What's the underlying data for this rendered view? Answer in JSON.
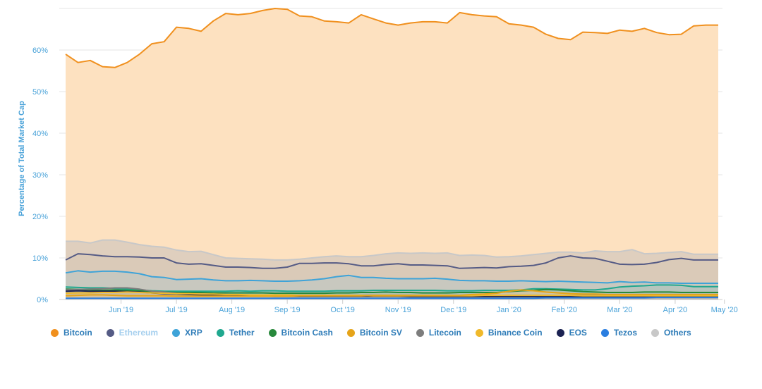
{
  "chart_data": {
    "type": "area",
    "ylabel": "Percentage of Total Market Cap",
    "ylim": [
      0,
      70
    ],
    "yticks": [
      "0%",
      "10%",
      "20%",
      "30%",
      "40%",
      "50%",
      "60%"
    ],
    "yticks_values": [
      0,
      10,
      20,
      30,
      40,
      50,
      60
    ],
    "xticks": [
      "Jun '19",
      "Jul '19",
      "Aug '19",
      "Sep '19",
      "Oct '19",
      "Nov '19",
      "Dec '19",
      "Jan '20",
      "Feb '20",
      "Mar '20",
      "Apr '20",
      "May '20"
    ],
    "xticks_index": [
      4.5,
      9.0,
      13.5,
      18.0,
      22.5,
      27.0,
      31.5,
      36.0,
      40.5,
      45.0,
      49.5,
      53.5
    ],
    "x": [
      "2019-05-05",
      "2019-05-12",
      "2019-05-19",
      "2019-05-26",
      "2019-06-02",
      "2019-06-09",
      "2019-06-16",
      "2019-06-23",
      "2019-06-30",
      "2019-07-07",
      "2019-07-14",
      "2019-07-21",
      "2019-07-28",
      "2019-08-04",
      "2019-08-11",
      "2019-08-18",
      "2019-08-25",
      "2019-09-01",
      "2019-09-08",
      "2019-09-15",
      "2019-09-22",
      "2019-09-29",
      "2019-10-06",
      "2019-10-13",
      "2019-10-20",
      "2019-10-27",
      "2019-11-03",
      "2019-11-10",
      "2019-11-17",
      "2019-11-24",
      "2019-12-01",
      "2019-12-08",
      "2019-12-15",
      "2019-12-22",
      "2019-12-29",
      "2020-01-05",
      "2020-01-12",
      "2020-01-19",
      "2020-01-26",
      "2020-02-02",
      "2020-02-09",
      "2020-02-16",
      "2020-02-23",
      "2020-03-01",
      "2020-03-08",
      "2020-03-15",
      "2020-03-22",
      "2020-03-29",
      "2020-04-05",
      "2020-04-12",
      "2020-04-19",
      "2020-04-26",
      "2020-05-03",
      "2020-05-10"
    ],
    "series": [
      {
        "name": "Bitcoin",
        "color": "#f0901e",
        "fill": "#fde1c0",
        "values": [
          59,
          57,
          57.5,
          56,
          55.8,
          57,
          59,
          61.5,
          62,
          65.5,
          65.2,
          64.5,
          67,
          68.8,
          68.5,
          68.8,
          69.5,
          70,
          69.8,
          68.2,
          68,
          67,
          66.8,
          66.5,
          68.5,
          67.5,
          66.5,
          66,
          66.5,
          66.8,
          66.8,
          66.5,
          69,
          68.5,
          68.2,
          68,
          66.3,
          66,
          65.5,
          63.8,
          62.8,
          62.5,
          64.3,
          64.2,
          64,
          64.8,
          64.5,
          65.2,
          64.2,
          63.7,
          63.8,
          65.8,
          66,
          66
        ]
      },
      {
        "name": "Ethereum",
        "color": "#555b85",
        "fill": "#d6c6b2",
        "values": [
          9.5,
          11,
          10.8,
          10.5,
          10.3,
          10.3,
          10.2,
          10,
          10,
          8.8,
          8.5,
          8.6,
          8.2,
          7.8,
          7.8,
          7.7,
          7.5,
          7.5,
          7.8,
          8.7,
          8.7,
          8.8,
          8.8,
          8.6,
          8.1,
          8.1,
          8.4,
          8.6,
          8.3,
          8.3,
          8.2,
          8.1,
          7.5,
          7.6,
          7.7,
          7.6,
          7.9,
          8,
          8.2,
          8.8,
          10,
          10.5,
          10,
          9.9,
          9.2,
          8.5,
          8.4,
          8.5,
          8.9,
          9.6,
          9.9,
          9.5,
          9.5,
          9.5
        ]
      },
      {
        "name": "XRP",
        "color": "#3ea3d8",
        "fill": "#b9c6c4",
        "values": [
          6.4,
          6.9,
          6.6,
          6.8,
          6.8,
          6.6,
          6.2,
          5.5,
          5.3,
          4.8,
          4.9,
          5,
          4.7,
          4.5,
          4.5,
          4.6,
          4.5,
          4.4,
          4.4,
          4.5,
          4.7,
          5,
          5.5,
          5.8,
          5.3,
          5.3,
          5.1,
          5,
          5,
          5,
          5.1,
          4.9,
          4.6,
          4.5,
          4.5,
          4.4,
          4.4,
          4.5,
          4.4,
          4.3,
          4.4,
          4.3,
          4.2,
          4.1,
          4,
          4.3,
          4.1,
          4.2,
          4,
          4,
          3.9,
          3.9,
          3.9,
          3.9
        ]
      },
      {
        "name": "Tether",
        "color": "#20a88f",
        "fill": "#a7c2bb",
        "values": [
          3,
          2.9,
          2.8,
          2.8,
          2.7,
          2.5,
          2.3,
          2.1,
          2,
          2,
          2,
          2,
          2,
          2,
          2.1,
          2,
          2.1,
          2.1,
          2,
          2,
          2,
          2,
          2.1,
          2.1,
          2.1,
          2.2,
          2.2,
          2.2,
          2.2,
          2.2,
          2.2,
          2.1,
          2.1,
          2.1,
          2.2,
          2.2,
          2.2,
          2.3,
          2.6,
          2.6,
          2.5,
          2.4,
          2.3,
          2.3,
          2.6,
          3,
          3.2,
          3.3,
          3.5,
          3.5,
          3.4,
          3.1,
          3.1,
          3.1
        ]
      },
      {
        "name": "Bitcoin Cash",
        "color": "#28893c",
        "fill": "#a5bca8",
        "values": [
          2.5,
          2.4,
          2.3,
          2.2,
          2.3,
          2.2,
          2.1,
          1.9,
          1.8,
          1.7,
          1.7,
          1.7,
          1.6,
          1.6,
          1.6,
          1.6,
          1.6,
          1.5,
          1.5,
          1.5,
          1.5,
          1.5,
          1.6,
          1.6,
          1.7,
          1.7,
          1.8,
          1.7,
          1.7,
          1.6,
          1.6,
          1.6,
          1.7,
          1.7,
          1.7,
          1.7,
          1.9,
          2.1,
          2.2,
          2.4,
          2.3,
          2.1,
          1.9,
          1.8,
          1.7,
          1.7,
          1.7,
          1.8,
          1.8,
          1.8,
          1.7,
          1.7,
          1.7,
          1.7
        ]
      },
      {
        "name": "Bitcoin SV",
        "color": "#e6a419",
        "fill": "#e7c79b",
        "values": [
          0.9,
          1,
          1.1,
          1.1,
          1,
          0.9,
          0.9,
          0.9,
          0.9,
          0.8,
          0.8,
          0.8,
          0.8,
          0.8,
          0.8,
          0.8,
          0.8,
          0.8,
          0.8,
          0.9,
          0.9,
          0.9,
          0.9,
          0.9,
          0.9,
          1,
          1,
          1,
          1,
          1,
          1,
          1,
          1,
          1.2,
          1.3,
          1.5,
          2,
          2.3,
          2.1,
          1.8,
          1.6,
          1.4,
          1.3,
          1.3,
          1.2,
          1.2,
          1.2,
          1.2,
          1.2,
          1.2,
          1.2,
          1.2,
          1.2,
          1.2
        ]
      },
      {
        "name": "Litecoin",
        "color": "#7d7d7d",
        "fill": "#b3aca2",
        "values": [
          2.3,
          2.4,
          2.5,
          2.6,
          2.8,
          2.8,
          2.5,
          2,
          1.8,
          1.5,
          1.3,
          1.3,
          1.2,
          1.2,
          1.1,
          1.1,
          1.1,
          1,
          1,
          1,
          1,
          1,
          1,
          1,
          1,
          1,
          1,
          1,
          1,
          0.9,
          0.9,
          0.9,
          0.9,
          0.9,
          0.9,
          0.9,
          1,
          1,
          1,
          1,
          1,
          1,
          1,
          1,
          1,
          0.9,
          0.9,
          0.9,
          0.9,
          0.9,
          0.9,
          0.9,
          0.9,
          0.9
        ]
      },
      {
        "name": "Binance Coin",
        "color": "#f0b92b",
        "fill": "#e9cf9b",
        "values": [
          1.5,
          1.6,
          1.6,
          1.7,
          1.7,
          1.8,
          1.7,
          1.6,
          1.5,
          1.4,
          1.4,
          1.3,
          1.3,
          1.2,
          1.2,
          1.1,
          1.1,
          1.1,
          1.1,
          1,
          1,
          1,
          1,
          1,
          1,
          0.9,
          0.9,
          0.9,
          0.9,
          0.9,
          0.9,
          0.9,
          0.9,
          0.9,
          1,
          1,
          1,
          1,
          1,
          1,
          1,
          1,
          0.9,
          0.9,
          0.9,
          0.9,
          0.9,
          0.9,
          0.9,
          0.9,
          0.9,
          0.9,
          0.9,
          0.9
        ]
      },
      {
        "name": "EOS",
        "color": "#1b2252",
        "fill": "#a09a92",
        "values": [
          2,
          2.1,
          2,
          2,
          2,
          1.9,
          1.8,
          1.6,
          1.4,
          1.3,
          1.2,
          1.1,
          1,
          0.9,
          0.9,
          0.9,
          0.9,
          0.8,
          0.8,
          0.8,
          0.8,
          0.8,
          0.8,
          0.8,
          0.8,
          0.8,
          0.8,
          0.8,
          0.7,
          0.7,
          0.7,
          0.7,
          0.7,
          0.7,
          0.7,
          0.7,
          0.7,
          0.7,
          0.7,
          0.7,
          0.7,
          0.7,
          0.6,
          0.6,
          0.6,
          0.6,
          0.6,
          0.6,
          0.6,
          0.6,
          0.6,
          0.6,
          0.6,
          0.6
        ]
      },
      {
        "name": "Tezos",
        "color": "#2a7ee0",
        "fill": "#a7b3c4",
        "values": [
          0.3,
          0.3,
          0.3,
          0.3,
          0.3,
          0.3,
          0.3,
          0.3,
          0.3,
          0.3,
          0.3,
          0.3,
          0.3,
          0.3,
          0.3,
          0.3,
          0.3,
          0.3,
          0.3,
          0.3,
          0.3,
          0.3,
          0.3,
          0.3,
          0.3,
          0.3,
          0.3,
          0.3,
          0.3,
          0.3,
          0.3,
          0.3,
          0.3,
          0.3,
          0.3,
          0.3,
          0.3,
          0.3,
          0.3,
          0.4,
          0.4,
          0.4,
          0.4,
          0.4,
          0.4,
          0.4,
          0.4,
          0.4,
          0.5,
          0.5,
          0.5,
          0.5,
          0.5,
          0.5
        ]
      },
      {
        "name": "Others",
        "color": "#c8c8c8",
        "fill": "#c6c1bb",
        "values": [
          14,
          14,
          13.6,
          14.3,
          14.3,
          13.8,
          13.2,
          12.8,
          12.6,
          11.9,
          11.5,
          11.6,
          10.8,
          10,
          9.9,
          9.8,
          9.7,
          9.5,
          9.5,
          9.7,
          10,
          10.3,
          10.5,
          10.3,
          10.3,
          10.6,
          11,
          11.2,
          11.1,
          11.2,
          11.1,
          11.2,
          10.6,
          10.7,
          10.6,
          10.2,
          10.3,
          10.5,
          10.8,
          11.1,
          11.4,
          11.4,
          11.2,
          11.7,
          11.5,
          11.5,
          12,
          11,
          11.1,
          11.3,
          11.5,
          10.9,
          10.9,
          10.9
        ]
      }
    ],
    "legend": "bottom",
    "legend_highlight": "Ethereum",
    "grid": true
  }
}
